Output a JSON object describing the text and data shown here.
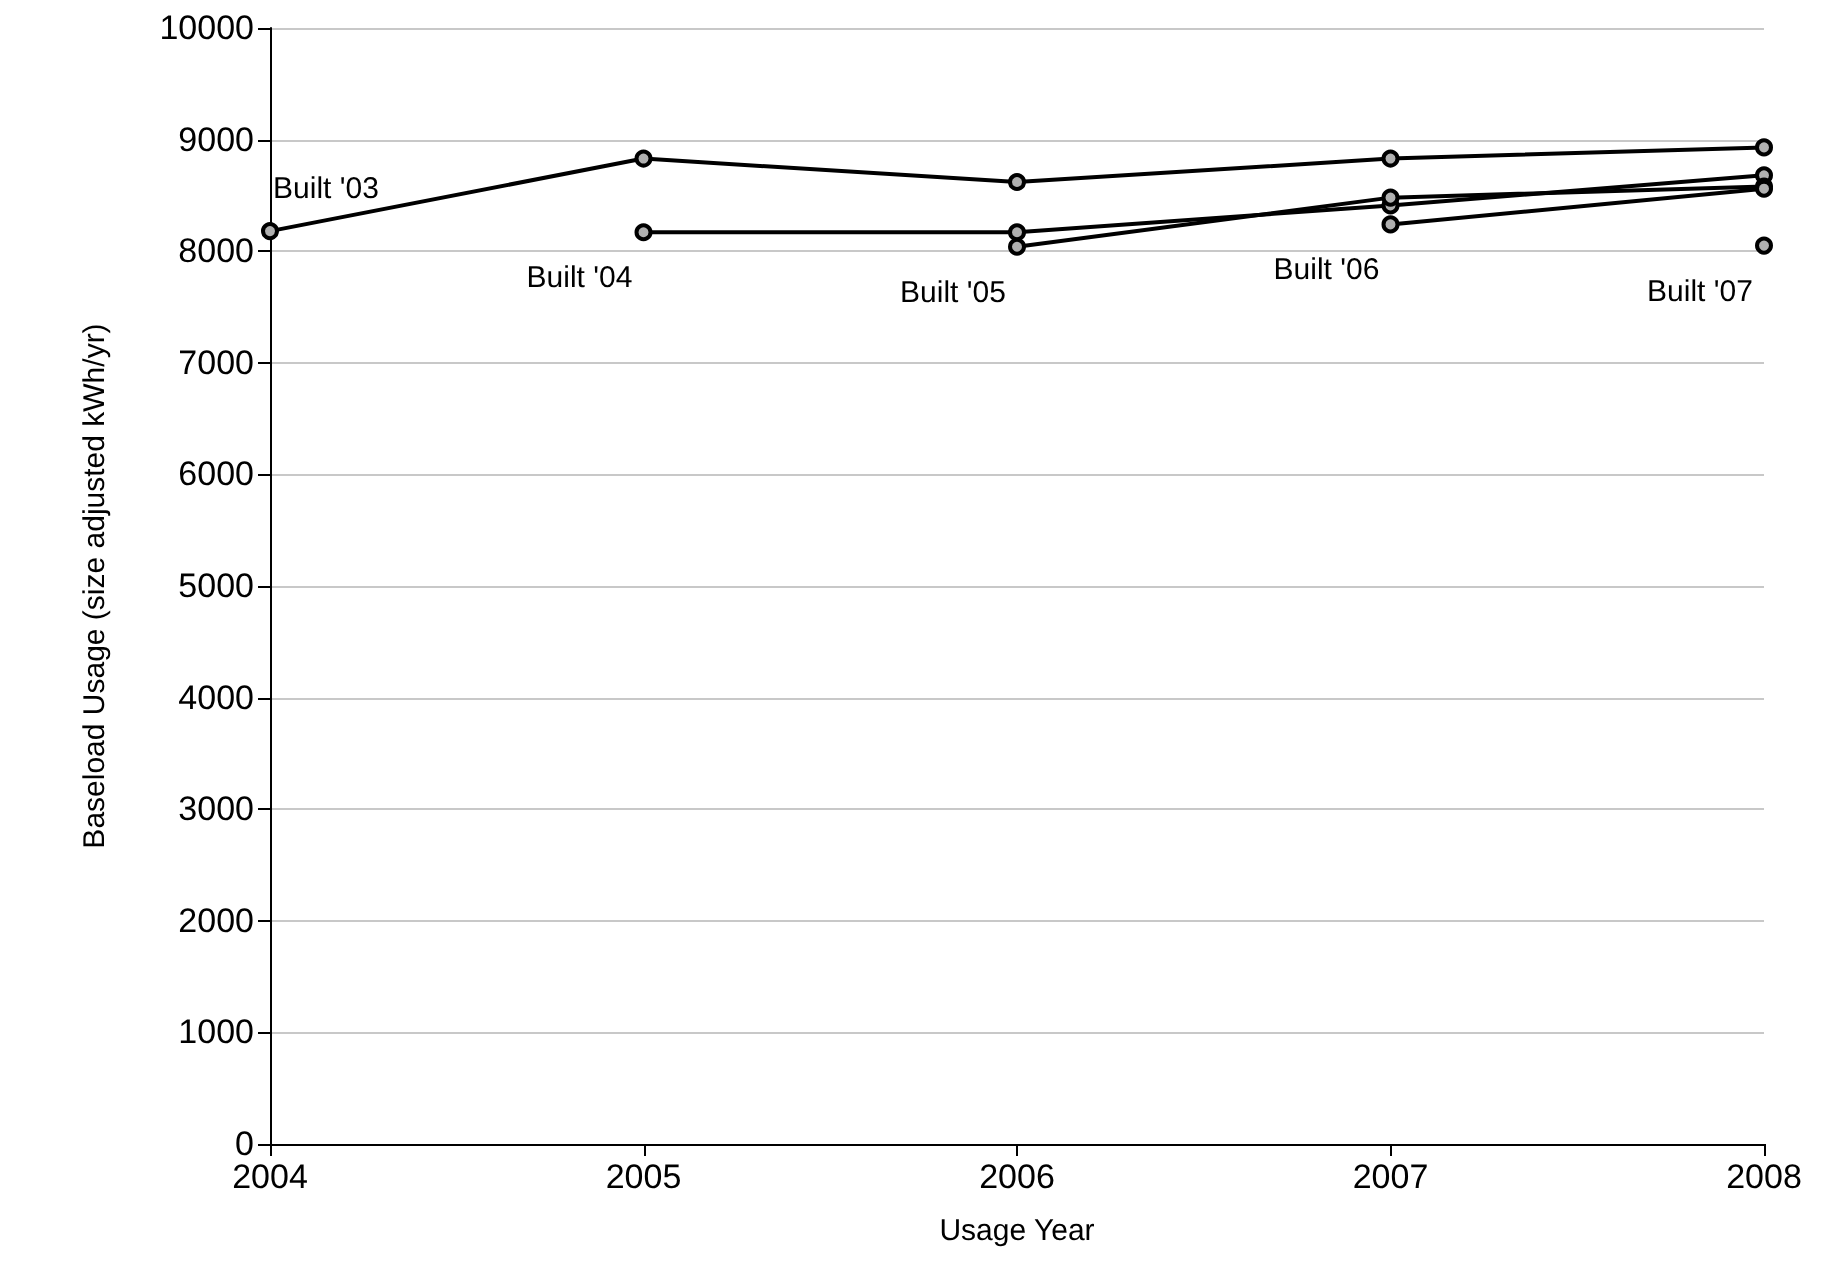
{
  "chart_data": {
    "type": "line",
    "xlabel": "Usage Year",
    "ylabel": "Baseload Usage (size adjusted kWh/yr)",
    "xlim": [
      2004,
      2008
    ],
    "xticks": [
      2004,
      2005,
      2006,
      2007,
      2008
    ],
    "ylim": [
      0,
      10000
    ],
    "yticks": [
      0,
      1000,
      2000,
      3000,
      4000,
      5000,
      6000,
      7000,
      8000,
      9000,
      10000
    ],
    "grid": "y",
    "marker": "circle",
    "series": [
      {
        "name": "Built '03",
        "color": "#000000",
        "x": [
          2004,
          2005,
          2006,
          2007,
          2008
        ],
        "values": [
          8180,
          8830,
          8620,
          8830,
          8930
        ]
      },
      {
        "name": "Built '04",
        "color": "#000000",
        "x": [
          2005,
          2006,
          2007,
          2008
        ],
        "values": [
          8170,
          8170,
          8410,
          8680
        ]
      },
      {
        "name": "Built '05",
        "color": "#000000",
        "x": [
          2006,
          2007,
          2008
        ],
        "values": [
          8040,
          8480,
          8580
        ]
      },
      {
        "name": "Built '06",
        "color": "#000000",
        "x": [
          2007,
          2008
        ],
        "values": [
          8240,
          8560
        ]
      },
      {
        "name": "Built '07",
        "color": "#000000",
        "x": [
          2008
        ],
        "values": [
          8050
        ]
      }
    ]
  }
}
